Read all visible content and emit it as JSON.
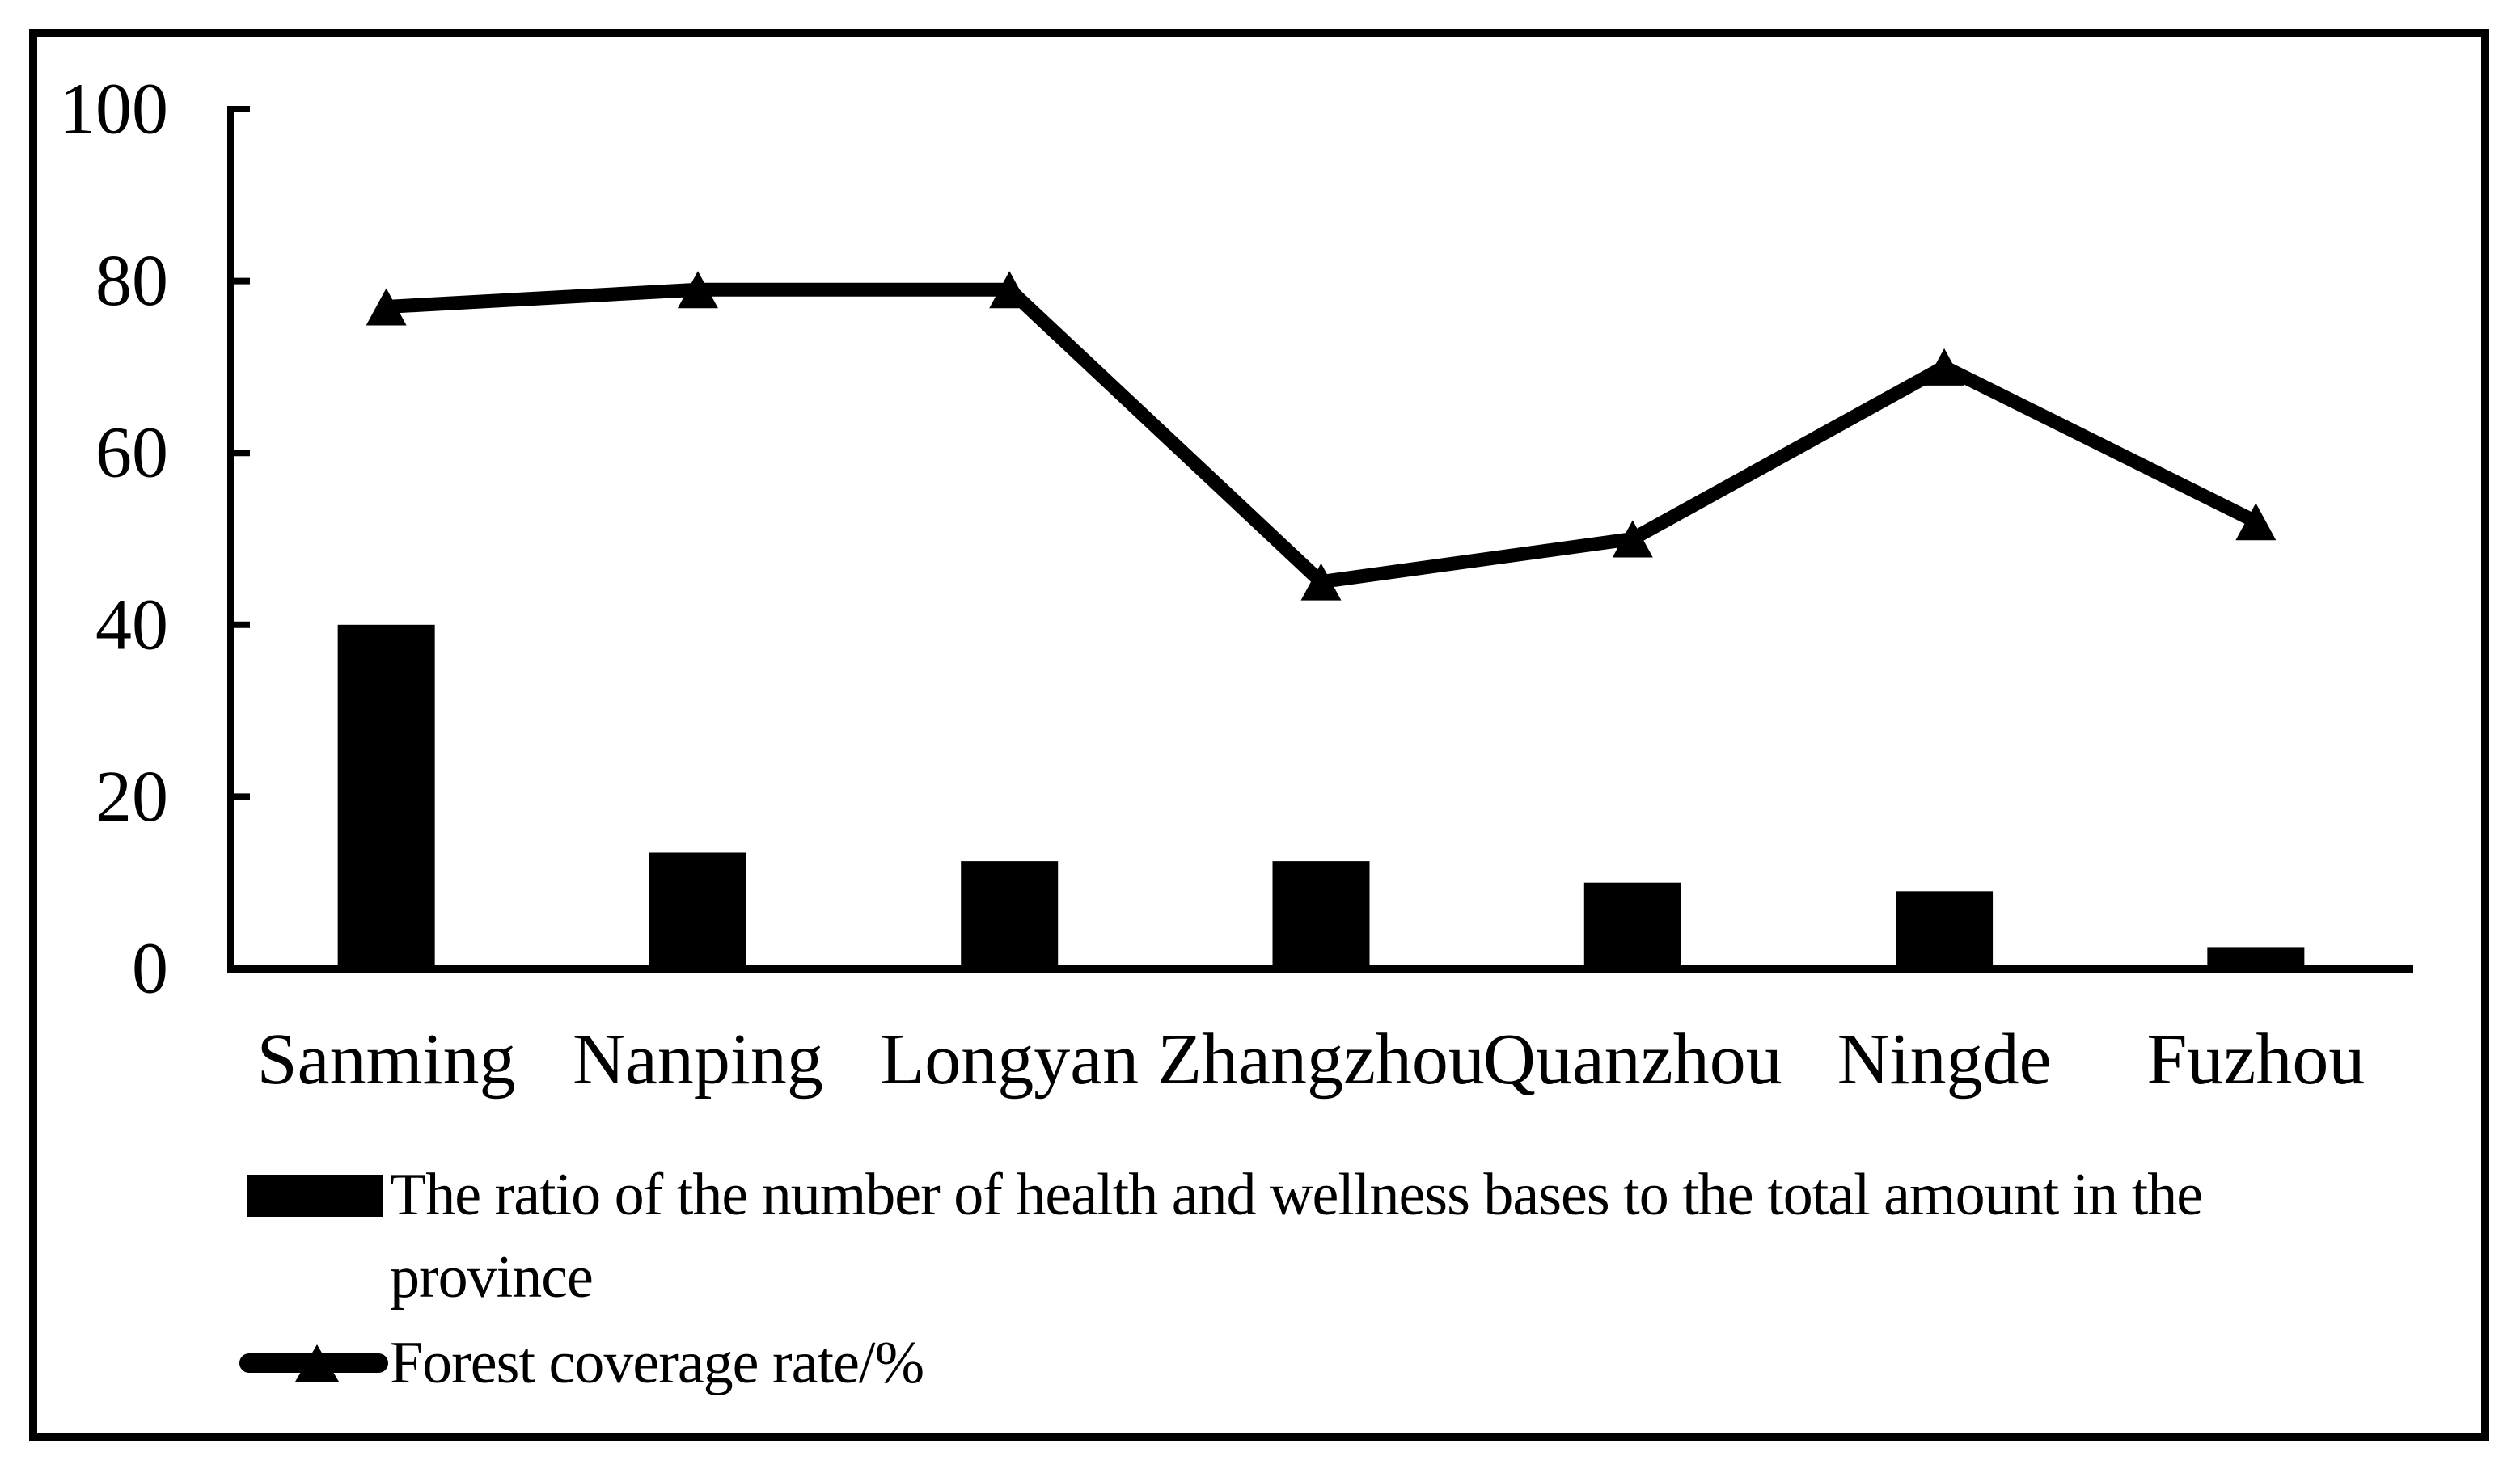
{
  "chart_data": {
    "type": "bar",
    "subtype": "bar+line combo",
    "categories": [
      "Sanming",
      "Nanping",
      "Longyan",
      "Zhangzhou",
      "Quanzhou",
      "Ningde",
      "Fuzhou"
    ],
    "series": [
      {
        "name": "The ratio of the number of health and wellness bases to the total amount in the province",
        "type": "bar",
        "color": "#000000",
        "values": [
          40,
          13.5,
          12.5,
          12.5,
          10,
          9,
          2.5
        ]
      },
      {
        "name": "Forest coverage rate/%",
        "type": "line",
        "marker": "filled-triangle",
        "color": "#000000",
        "values": [
          77,
          79,
          79,
          45,
          50,
          70,
          52
        ]
      }
    ],
    "title": "",
    "xlabel": "",
    "ylabel": "",
    "ylim": [
      0,
      100
    ],
    "yticks": [
      0,
      20,
      40,
      60,
      80,
      100
    ],
    "grid": false,
    "legend_position": "bottom-left",
    "background": "#ffffff",
    "text_color": "#000000"
  },
  "legend": {
    "items": [
      {
        "swatch": "bar-swatch",
        "lines": [
          "The ratio of the number of health and wellness bases to the total amount in the",
          "province"
        ]
      },
      {
        "swatch": "line-triangle-swatch",
        "lines": [
          "Forest coverage rate/%"
        ]
      }
    ]
  }
}
